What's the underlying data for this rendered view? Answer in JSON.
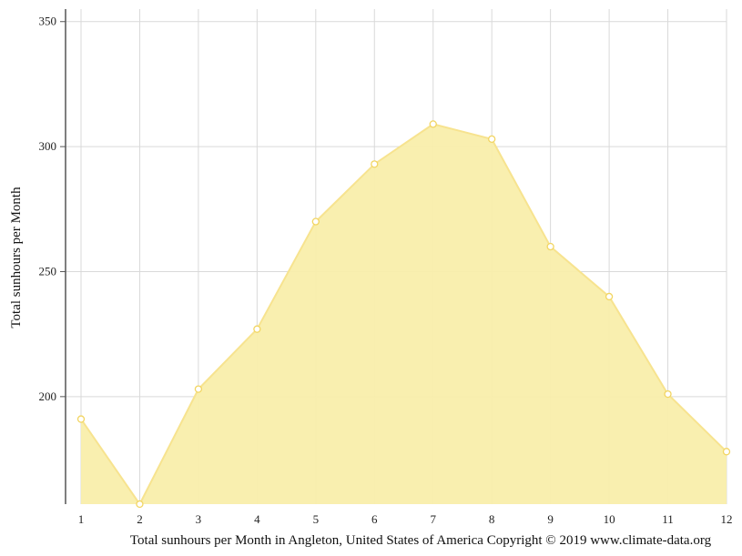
{
  "chart_data": {
    "type": "area",
    "x": [
      1,
      2,
      3,
      4,
      5,
      6,
      7,
      8,
      9,
      10,
      11,
      12
    ],
    "categories": [
      "1",
      "2",
      "3",
      "4",
      "5",
      "6",
      "7",
      "8",
      "9",
      "10",
      "11",
      "12"
    ],
    "values": [
      191,
      157,
      203,
      227,
      270,
      293,
      309,
      303,
      260,
      240,
      201,
      178
    ],
    "ylabel": "Total sunhours per Month",
    "xlabel": "Total sunhours per Month in Angleton, United States of America Copyright © 2019 www.climate-data.org",
    "ylim": [
      157,
      355
    ],
    "yticks": [
      200,
      250,
      300,
      350
    ],
    "grid": true,
    "colors": {
      "fill": "#f9eeab",
      "line": "#f7e38f",
      "marker_stroke": "#f2d562",
      "grid": "#d9d9d9",
      "axis": "#555555"
    }
  }
}
